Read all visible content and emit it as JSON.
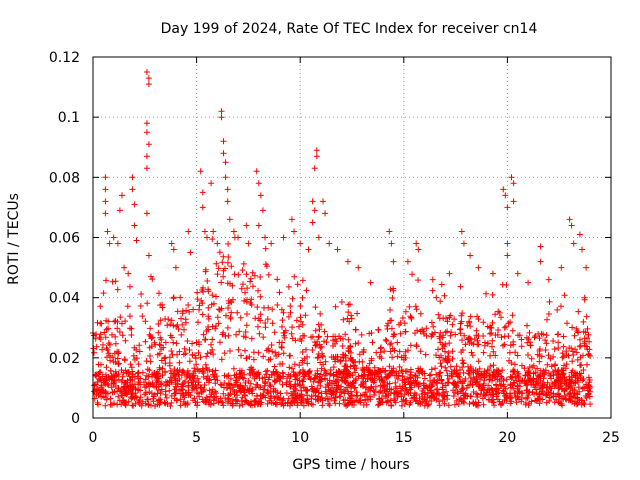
{
  "chart_data": {
    "type": "scatter",
    "title": "Day 199 of 2024, Rate Of TEC Index for receiver cn14",
    "xlabel": "GPS time / hours",
    "ylabel": "ROTI / TECUs",
    "xlim": [
      0,
      25
    ],
    "ylim": [
      0,
      0.12
    ],
    "xticks": [
      0,
      5,
      10,
      15,
      20,
      25
    ],
    "yticks": [
      0,
      0.02,
      0.04,
      0.06,
      0.08,
      0.1,
      0.12
    ],
    "xtick_labels": [
      "0",
      "5",
      "10",
      "15",
      "20",
      "25"
    ],
    "ytick_labels": [
      "0",
      "0.02",
      "0.04",
      "0.06",
      "0.08",
      "0.1",
      "0.12"
    ],
    "grid": true,
    "marker": "+",
    "series_color": "#ff0000",
    "x_range_of_data": [
      0,
      24
    ],
    "series": [
      {
        "name": "ROTI",
        "note": "dense band of values mostly between 0.005 and 0.035 TECU/min across 0-24 h, with spikes listed below",
        "points": [
          {
            "x": 0.6,
            "y": 0.08
          },
          {
            "x": 0.6,
            "y": 0.076
          },
          {
            "x": 0.6,
            "y": 0.072
          },
          {
            "x": 0.6,
            "y": 0.068
          },
          {
            "x": 0.7,
            "y": 0.062
          },
          {
            "x": 0.8,
            "y": 0.058
          },
          {
            "x": 1.0,
            "y": 0.06
          },
          {
            "x": 1.2,
            "y": 0.058
          },
          {
            "x": 1.3,
            "y": 0.069
          },
          {
            "x": 1.4,
            "y": 0.074
          },
          {
            "x": 1.5,
            "y": 0.05
          },
          {
            "x": 1.7,
            "y": 0.048
          },
          {
            "x": 1.9,
            "y": 0.08
          },
          {
            "x": 1.9,
            "y": 0.076
          },
          {
            "x": 2.0,
            "y": 0.071
          },
          {
            "x": 2.0,
            "y": 0.064
          },
          {
            "x": 2.1,
            "y": 0.059
          },
          {
            "x": 2.6,
            "y": 0.115
          },
          {
            "x": 2.7,
            "y": 0.113
          },
          {
            "x": 2.7,
            "y": 0.111
          },
          {
            "x": 2.6,
            "y": 0.098
          },
          {
            "x": 2.6,
            "y": 0.095
          },
          {
            "x": 2.7,
            "y": 0.091
          },
          {
            "x": 2.6,
            "y": 0.087
          },
          {
            "x": 2.6,
            "y": 0.083
          },
          {
            "x": 2.6,
            "y": 0.068
          },
          {
            "x": 2.7,
            "y": 0.054
          },
          {
            "x": 2.8,
            "y": 0.047
          },
          {
            "x": 3.8,
            "y": 0.058
          },
          {
            "x": 3.9,
            "y": 0.056
          },
          {
            "x": 4.0,
            "y": 0.05
          },
          {
            "x": 4.6,
            "y": 0.062
          },
          {
            "x": 4.7,
            "y": 0.055
          },
          {
            "x": 5.2,
            "y": 0.082
          },
          {
            "x": 5.3,
            "y": 0.075
          },
          {
            "x": 5.3,
            "y": 0.07
          },
          {
            "x": 5.4,
            "y": 0.062
          },
          {
            "x": 5.5,
            "y": 0.06
          },
          {
            "x": 5.7,
            "y": 0.078
          },
          {
            "x": 5.8,
            "y": 0.062
          },
          {
            "x": 6.0,
            "y": 0.058
          },
          {
            "x": 6.2,
            "y": 0.102
          },
          {
            "x": 6.2,
            "y": 0.1
          },
          {
            "x": 6.3,
            "y": 0.092
          },
          {
            "x": 6.3,
            "y": 0.088
          },
          {
            "x": 6.4,
            "y": 0.085
          },
          {
            "x": 6.4,
            "y": 0.08
          },
          {
            "x": 6.5,
            "y": 0.076
          },
          {
            "x": 6.5,
            "y": 0.072
          },
          {
            "x": 6.6,
            "y": 0.066
          },
          {
            "x": 6.8,
            "y": 0.062
          },
          {
            "x": 7.0,
            "y": 0.06
          },
          {
            "x": 7.4,
            "y": 0.064
          },
          {
            "x": 7.5,
            "y": 0.058
          },
          {
            "x": 7.9,
            "y": 0.082
          },
          {
            "x": 8.0,
            "y": 0.078
          },
          {
            "x": 8.1,
            "y": 0.074
          },
          {
            "x": 8.2,
            "y": 0.069
          },
          {
            "x": 8.0,
            "y": 0.064
          },
          {
            "x": 8.3,
            "y": 0.06
          },
          {
            "x": 8.6,
            "y": 0.058
          },
          {
            "x": 9.2,
            "y": 0.06
          },
          {
            "x": 9.6,
            "y": 0.066
          },
          {
            "x": 9.7,
            "y": 0.062
          },
          {
            "x": 10.0,
            "y": 0.058
          },
          {
            "x": 10.4,
            "y": 0.056
          },
          {
            "x": 10.6,
            "y": 0.072
          },
          {
            "x": 10.7,
            "y": 0.069
          },
          {
            "x": 10.8,
            "y": 0.089
          },
          {
            "x": 10.8,
            "y": 0.087
          },
          {
            "x": 10.7,
            "y": 0.083
          },
          {
            "x": 10.6,
            "y": 0.065
          },
          {
            "x": 10.9,
            "y": 0.06
          },
          {
            "x": 11.1,
            "y": 0.072
          },
          {
            "x": 11.2,
            "y": 0.068
          },
          {
            "x": 11.4,
            "y": 0.058
          },
          {
            "x": 11.8,
            "y": 0.056
          },
          {
            "x": 12.3,
            "y": 0.052
          },
          {
            "x": 12.8,
            "y": 0.05
          },
          {
            "x": 13.4,
            "y": 0.045
          },
          {
            "x": 14.3,
            "y": 0.062
          },
          {
            "x": 14.4,
            "y": 0.058
          },
          {
            "x": 14.5,
            "y": 0.052
          },
          {
            "x": 15.2,
            "y": 0.052
          },
          {
            "x": 15.6,
            "y": 0.058
          },
          {
            "x": 15.7,
            "y": 0.056
          },
          {
            "x": 16.4,
            "y": 0.046
          },
          {
            "x": 17.2,
            "y": 0.048
          },
          {
            "x": 17.8,
            "y": 0.062
          },
          {
            "x": 17.9,
            "y": 0.058
          },
          {
            "x": 18.2,
            "y": 0.054
          },
          {
            "x": 18.6,
            "y": 0.05
          },
          {
            "x": 19.3,
            "y": 0.048
          },
          {
            "x": 19.8,
            "y": 0.076
          },
          {
            "x": 19.9,
            "y": 0.074
          },
          {
            "x": 20.0,
            "y": 0.07
          },
          {
            "x": 20.2,
            "y": 0.08
          },
          {
            "x": 20.3,
            "y": 0.078
          },
          {
            "x": 20.3,
            "y": 0.072
          },
          {
            "x": 20.0,
            "y": 0.058
          },
          {
            "x": 20.0,
            "y": 0.054
          },
          {
            "x": 20.5,
            "y": 0.048
          },
          {
            "x": 21.0,
            "y": 0.045
          },
          {
            "x": 21.6,
            "y": 0.057
          },
          {
            "x": 21.6,
            "y": 0.052
          },
          {
            "x": 22.0,
            "y": 0.046
          },
          {
            "x": 22.6,
            "y": 0.05
          },
          {
            "x": 23.0,
            "y": 0.066
          },
          {
            "x": 23.1,
            "y": 0.064
          },
          {
            "x": 23.2,
            "y": 0.058
          },
          {
            "x": 23.5,
            "y": 0.061
          },
          {
            "x": 23.6,
            "y": 0.056
          },
          {
            "x": 23.8,
            "y": 0.05
          }
        ]
      }
    ]
  }
}
